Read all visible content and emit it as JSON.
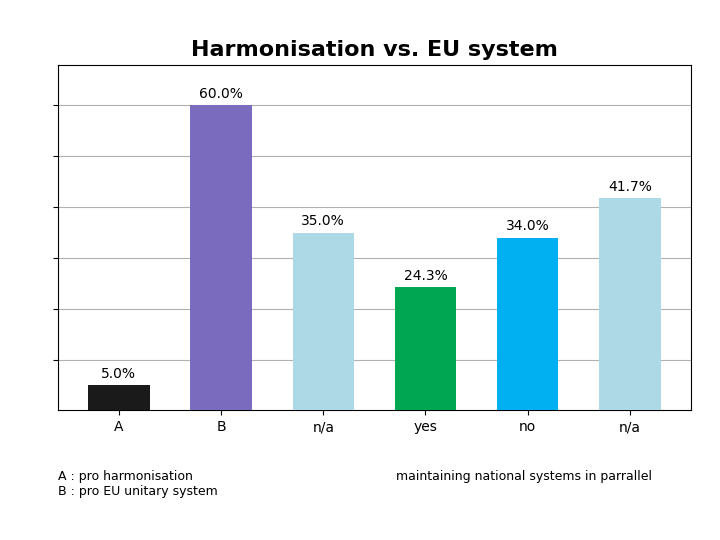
{
  "chart_data": {
    "type": "bar",
    "title": "Harmonisation vs. EU system",
    "categories": [
      "A",
      "B",
      "n/a",
      "yes",
      "no",
      "n/a"
    ],
    "values": [
      5.0,
      60.0,
      35.0,
      24.3,
      34.0,
      41.7
    ],
    "value_labels": [
      "5.0%",
      "60.0%",
      "35.0%",
      "24.3%",
      "34.0%",
      "41.7%"
    ],
    "data_labels": true,
    "colors": [
      "#1a1a1a",
      "#7b6bbf",
      "#add8e6",
      "#00a651",
      "#00b0f0",
      "#add8e6"
    ],
    "ylim": [
      0,
      68
    ],
    "yticks": [
      10,
      20,
      30,
      40,
      50,
      60
    ],
    "grid": true,
    "tick_labels": "x",
    "annotations": [
      "A : pro harmonisation\nB : pro EU unitary system",
      "maintaining national systems in parrallel"
    ]
  }
}
